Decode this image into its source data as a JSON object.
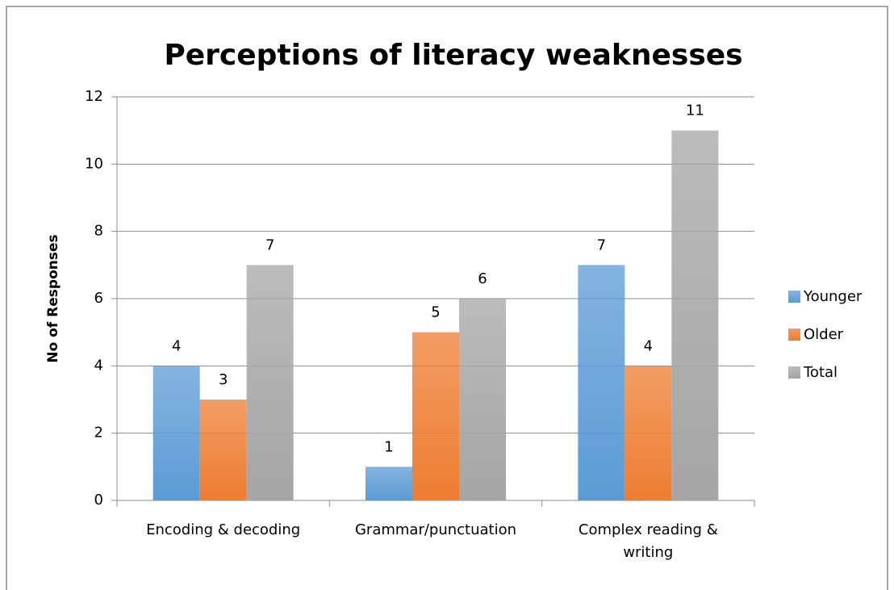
{
  "chart_data": {
    "type": "bar",
    "title": "Perceptions of literacy weaknesses",
    "y_label": "No of Responses",
    "categories": [
      "Encoding & decoding",
      "Grammar/punctuation",
      "Complex reading & writing"
    ],
    "series": [
      {
        "name": "Younger",
        "color": "#5b9bd5",
        "values": [
          4,
          1,
          7
        ]
      },
      {
        "name": "Older",
        "color": "#ed7d31",
        "values": [
          3,
          5,
          4
        ]
      },
      {
        "name": "Total",
        "color": "#a5a5a5",
        "values": [
          7,
          6,
          11
        ]
      }
    ],
    "ylim": [
      0,
      12
    ],
    "yticks": [
      0,
      2,
      4,
      6,
      8,
      10,
      12
    ],
    "grid": true,
    "legend": "right"
  }
}
